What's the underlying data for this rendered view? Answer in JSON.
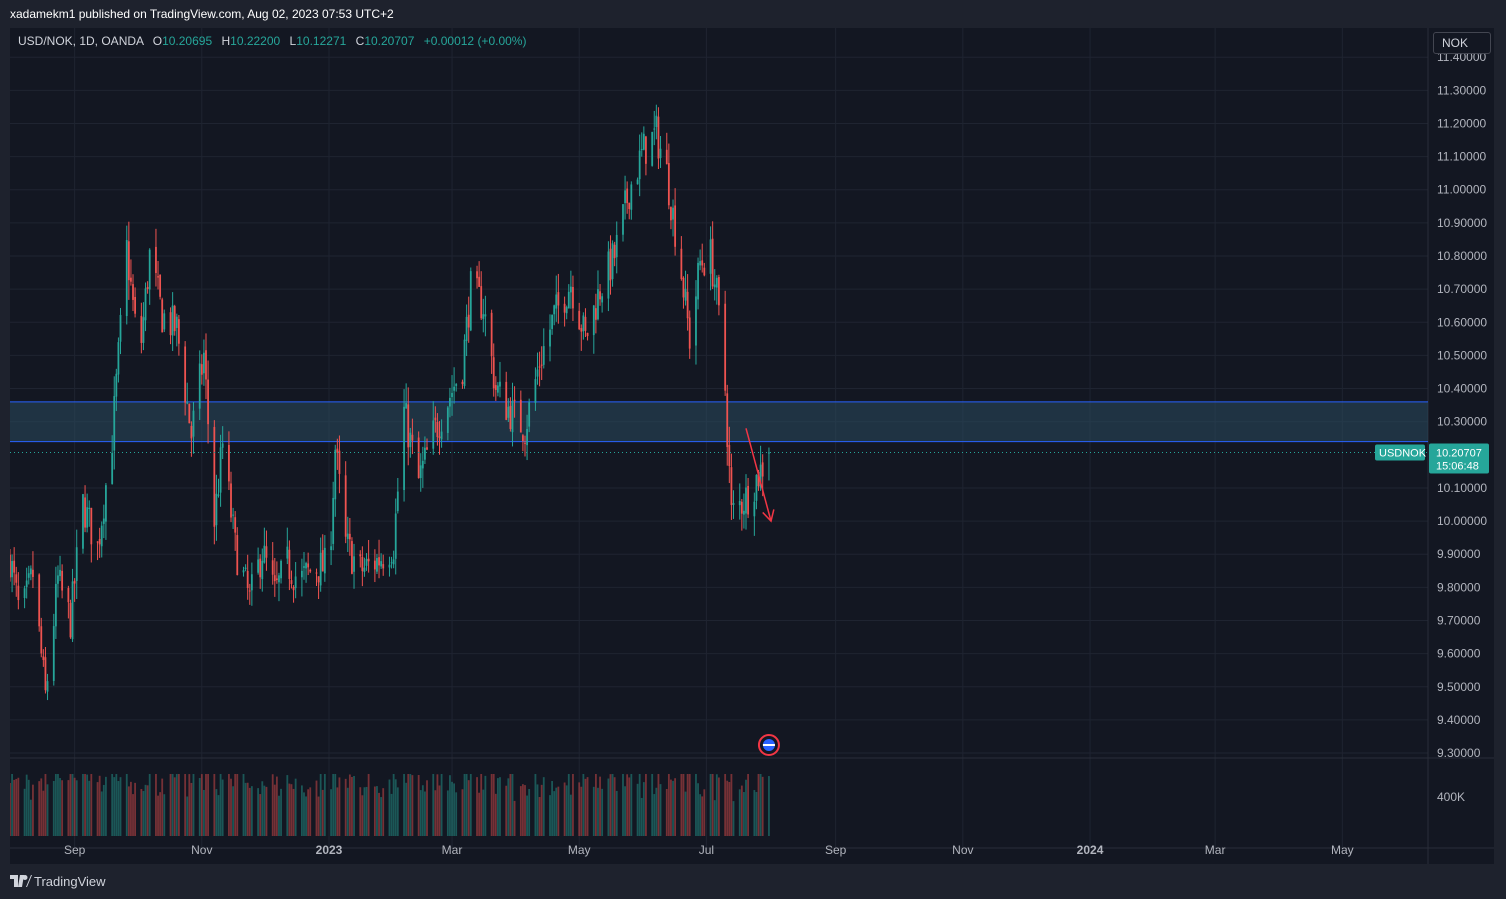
{
  "header": {
    "published": "xadamekm1 published on TradingView.com, Aug 02, 2023 07:53 UTC+2"
  },
  "legend": {
    "symbol": "USD/NOK, 1D, OANDA",
    "open_label": "O",
    "open": "10.20695",
    "high_label": "H",
    "high": "10.22200",
    "low_label": "L",
    "low": "10.12271",
    "close_label": "C",
    "close": "10.20707",
    "change": "+0.00012 (+0.00%)"
  },
  "currency_button": "NOK",
  "price_label": {
    "symbol": "USDNOK",
    "price": "10.20707",
    "countdown": "15:06:48"
  },
  "volume_label": "400K",
  "footer": {
    "brand": "TradingView"
  },
  "colors": {
    "up": "#26a69a",
    "down": "#ef5350",
    "background": "#131722",
    "zone_fill": "#2a4a5e",
    "zone_line": "#2962ff",
    "arrow": "#f23645"
  },
  "chart_data": {
    "type": "candlestick",
    "symbol": "USD/NOK",
    "interval": "1D",
    "y_ticks": [
      "11.40000",
      "11.30000",
      "11.20000",
      "11.10000",
      "11.00000",
      "10.90000",
      "10.80000",
      "10.70000",
      "10.60000",
      "10.50000",
      "10.40000",
      "10.30000",
      "10.10000",
      "10.00000",
      "9.90000",
      "9.80000",
      "9.70000",
      "9.60000",
      "9.50000",
      "9.40000",
      "9.30000"
    ],
    "ylim": [
      9.27,
      11.47
    ],
    "x_ticks": [
      "Sep",
      "Nov",
      "2023",
      "Mar",
      "May",
      "Jul",
      "Sep",
      "Nov",
      "2024",
      "Mar",
      "May"
    ],
    "zone": [
      10.24,
      10.36
    ],
    "current_price": 10.20707,
    "arrow": {
      "from_date": "2023-07-20",
      "from_price": 10.28,
      "to_date": "2023-08-01",
      "to_price": 10.0
    },
    "price_path": [
      [
        "2022-08-01",
        9.89
      ],
      [
        "2022-08-06",
        9.7
      ],
      [
        "2022-08-12",
        9.84
      ],
      [
        "2022-08-18",
        9.47
      ],
      [
        "2022-08-24",
        9.82
      ],
      [
        "2022-08-30",
        9.7
      ],
      [
        "2022-09-05",
        10.05
      ],
      [
        "2022-09-12",
        9.92
      ],
      [
        "2022-09-19",
        10.25
      ],
      [
        "2022-09-26",
        10.82
      ],
      [
        "2022-10-02",
        10.48
      ],
      [
        "2022-10-07",
        10.8
      ],
      [
        "2022-10-13",
        10.62
      ],
      [
        "2022-10-20",
        10.58
      ],
      [
        "2022-10-27",
        10.26
      ],
      [
        "2022-11-02",
        10.5
      ],
      [
        "2022-11-07",
        10.0
      ],
      [
        "2022-11-11",
        10.23
      ],
      [
        "2022-11-17",
        9.92
      ],
      [
        "2022-11-24",
        9.76
      ],
      [
        "2022-11-30",
        9.91
      ],
      [
        "2022-12-06",
        9.78
      ],
      [
        "2022-12-12",
        9.87
      ],
      [
        "2022-12-18",
        9.82
      ],
      [
        "2022-12-25",
        9.86
      ],
      [
        "2023-01-01",
        9.86
      ],
      [
        "2023-01-04",
        10.22
      ],
      [
        "2023-01-09",
        9.93
      ],
      [
        "2023-01-16",
        9.85
      ],
      [
        "2023-01-24",
        9.88
      ],
      [
        "2023-02-01",
        9.93
      ],
      [
        "2023-02-06",
        10.33
      ],
      [
        "2023-02-13",
        10.12
      ],
      [
        "2023-02-20",
        10.26
      ],
      [
        "2023-02-28",
        10.38
      ],
      [
        "2023-03-06",
        10.47
      ],
      [
        "2023-03-10",
        10.7
      ],
      [
        "2023-03-16",
        10.65
      ],
      [
        "2023-03-22",
        10.4
      ],
      [
        "2023-03-29",
        10.33
      ],
      [
        "2023-04-05",
        10.28
      ],
      [
        "2023-04-12",
        10.48
      ],
      [
        "2023-04-19",
        10.62
      ],
      [
        "2023-04-27",
        10.72
      ],
      [
        "2023-05-04",
        10.55
      ],
      [
        "2023-05-11",
        10.7
      ],
      [
        "2023-05-18",
        10.8
      ],
      [
        "2023-05-25",
        11.0
      ],
      [
        "2023-06-01",
        11.12
      ],
      [
        "2023-06-07",
        11.17
      ],
      [
        "2023-06-12",
        11.05
      ],
      [
        "2023-06-18",
        10.8
      ],
      [
        "2023-06-23",
        10.55
      ],
      [
        "2023-06-28",
        10.78
      ],
      [
        "2023-07-03",
        10.8
      ],
      [
        "2023-07-06",
        10.68
      ],
      [
        "2023-07-10",
        10.4
      ],
      [
        "2023-07-13",
        10.02
      ],
      [
        "2023-07-17",
        10.05
      ],
      [
        "2023-07-21",
        10.08
      ],
      [
        "2023-07-26",
        10.14
      ],
      [
        "2023-07-31",
        10.207
      ]
    ],
    "volume": {
      "typical_k": [
        300,
        360
      ],
      "label": "400K"
    }
  }
}
